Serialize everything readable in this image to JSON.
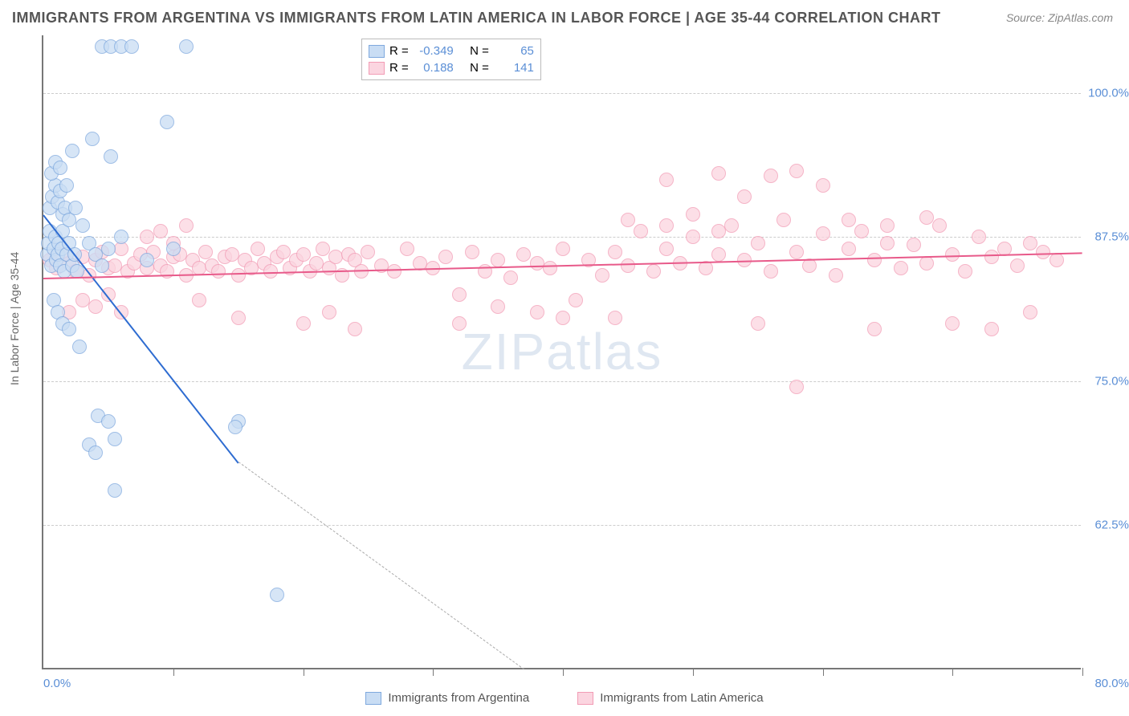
{
  "title": "IMMIGRANTS FROM ARGENTINA VS IMMIGRANTS FROM LATIN AMERICA IN LABOR FORCE | AGE 35-44 CORRELATION CHART",
  "source": "Source: ZipAtlas.com",
  "ylabel": "In Labor Force | Age 35-44",
  "watermark": "ZIPatlas",
  "chart": {
    "type": "scatter",
    "xlim": [
      0,
      80
    ],
    "ylim": [
      50,
      105
    ],
    "xtick_step": 10,
    "xtick_labels": {
      "0": "0.0%",
      "80": "80.0%"
    },
    "ytick_vals": [
      62.5,
      75.0,
      87.5,
      100.0
    ],
    "ytick_labels": [
      "62.5%",
      "75.0%",
      "87.5%",
      "100.0%"
    ],
    "background_color": "#ffffff",
    "grid_color": "#cccccc",
    "axis_color": "#777777",
    "marker_radius": 9,
    "marker_stroke": 1.5,
    "series": [
      {
        "name": "Immigrants from Argentina",
        "fill": "#c9ddf4",
        "stroke": "#7fa9de",
        "line_color": "#2e6cd1",
        "r": "-0.349",
        "n": "65",
        "trend": {
          "x1": 0,
          "y1": 89.5,
          "x2": 15,
          "y2": 68.0,
          "dash_x2": 37,
          "dash_y2": 50
        },
        "points": [
          [
            0.3,
            86
          ],
          [
            0.4,
            87
          ],
          [
            0.5,
            88
          ],
          [
            0.6,
            85
          ],
          [
            0.8,
            86.5
          ],
          [
            0.9,
            87.5
          ],
          [
            1.0,
            85.5
          ],
          [
            1.1,
            86
          ],
          [
            1.2,
            87
          ],
          [
            1.3,
            85
          ],
          [
            1.4,
            86.5
          ],
          [
            1.5,
            88
          ],
          [
            1.6,
            84.5
          ],
          [
            1.8,
            86
          ],
          [
            2.0,
            87
          ],
          [
            2.2,
            85
          ],
          [
            2.4,
            86
          ],
          [
            2.6,
            84.5
          ],
          [
            0.5,
            90
          ],
          [
            0.7,
            91
          ],
          [
            0.9,
            92
          ],
          [
            1.1,
            90.5
          ],
          [
            1.3,
            91.5
          ],
          [
            1.5,
            89.5
          ],
          [
            1.7,
            90
          ],
          [
            2.0,
            89
          ],
          [
            2.5,
            90
          ],
          [
            3.0,
            88.5
          ],
          [
            3.5,
            87
          ],
          [
            4.0,
            86
          ],
          [
            4.5,
            85
          ],
          [
            0.6,
            93
          ],
          [
            0.9,
            94
          ],
          [
            1.3,
            93.5
          ],
          [
            1.8,
            92
          ],
          [
            2.2,
            95
          ],
          [
            3.8,
            96
          ],
          [
            5.2,
            94.5
          ],
          [
            0.8,
            82
          ],
          [
            1.1,
            81
          ],
          [
            1.5,
            80
          ],
          [
            2.0,
            79.5
          ],
          [
            2.8,
            78
          ],
          [
            4.5,
            104
          ],
          [
            5.2,
            104
          ],
          [
            6.0,
            104
          ],
          [
            6.8,
            104
          ],
          [
            11.0,
            104
          ],
          [
            9.5,
            97.5
          ],
          [
            4.2,
            72
          ],
          [
            5.0,
            71.5
          ],
          [
            5.5,
            70
          ],
          [
            15.0,
            71.5
          ],
          [
            14.8,
            71.0
          ],
          [
            3.5,
            69.5
          ],
          [
            4.0,
            68.8
          ],
          [
            5.5,
            65.5
          ],
          [
            5.0,
            86.5
          ],
          [
            6.0,
            87.5
          ],
          [
            8.0,
            85.5
          ],
          [
            10.0,
            86.5
          ],
          [
            18.0,
            56.5
          ]
        ]
      },
      {
        "name": "Immigrants from Latin America",
        "fill": "#fbd5e0",
        "stroke": "#f29cb5",
        "line_color": "#e85a8a",
        "r": "0.188",
        "n": "141",
        "trend": {
          "x1": 0,
          "y1": 84.0,
          "x2": 80,
          "y2": 86.2
        },
        "points": [
          [
            0.5,
            85.5
          ],
          [
            1,
            84.8
          ],
          [
            1.5,
            86
          ],
          [
            2,
            85.2
          ],
          [
            2.5,
            84.5
          ],
          [
            3,
            85.8
          ],
          [
            3.5,
            84.2
          ],
          [
            4,
            85.5
          ],
          [
            4.5,
            86.2
          ],
          [
            5,
            84.8
          ],
          [
            5.5,
            85
          ],
          [
            6,
            86.5
          ],
          [
            6.5,
            84.5
          ],
          [
            7,
            85.2
          ],
          [
            7.5,
            86
          ],
          [
            8,
            84.8
          ],
          [
            8.5,
            86.2
          ],
          [
            9,
            85
          ],
          [
            9.5,
            84.5
          ],
          [
            10,
            85.8
          ],
          [
            10.5,
            86
          ],
          [
            11,
            84.2
          ],
          [
            11.5,
            85.5
          ],
          [
            12,
            84.8
          ],
          [
            12.5,
            86.2
          ],
          [
            13,
            85
          ],
          [
            13.5,
            84.5
          ],
          [
            14,
            85.8
          ],
          [
            14.5,
            86
          ],
          [
            15,
            84.2
          ],
          [
            15.5,
            85.5
          ],
          [
            16,
            84.8
          ],
          [
            16.5,
            86.5
          ],
          [
            17,
            85.2
          ],
          [
            17.5,
            84.5
          ],
          [
            18,
            85.8
          ],
          [
            18.5,
            86.2
          ],
          [
            19,
            84.8
          ],
          [
            19.5,
            85.5
          ],
          [
            20,
            86
          ],
          [
            20.5,
            84.5
          ],
          [
            21,
            85.2
          ],
          [
            21.5,
            86.5
          ],
          [
            22,
            84.8
          ],
          [
            22.5,
            85.8
          ],
          [
            23,
            84.2
          ],
          [
            23.5,
            86
          ],
          [
            24,
            85.5
          ],
          [
            24.5,
            84.5
          ],
          [
            25,
            86.2
          ],
          [
            26,
            85
          ],
          [
            27,
            84.5
          ],
          [
            28,
            86.5
          ],
          [
            29,
            85.2
          ],
          [
            30,
            84.8
          ],
          [
            31,
            85.8
          ],
          [
            32,
            82.5
          ],
          [
            33,
            86.2
          ],
          [
            34,
            84.5
          ],
          [
            35,
            85.5
          ],
          [
            36,
            84
          ],
          [
            37,
            86
          ],
          [
            38,
            85.2
          ],
          [
            39,
            84.8
          ],
          [
            40,
            86.5
          ],
          [
            41,
            82
          ],
          [
            42,
            85.5
          ],
          [
            43,
            84.2
          ],
          [
            44,
            86.2
          ],
          [
            45,
            85
          ],
          [
            46,
            88
          ],
          [
            47,
            84.5
          ],
          [
            48,
            86.5
          ],
          [
            49,
            85.2
          ],
          [
            50,
            87.5
          ],
          [
            51,
            84.8
          ],
          [
            52,
            86
          ],
          [
            53,
            88.5
          ],
          [
            54,
            85.5
          ],
          [
            55,
            87
          ],
          [
            56,
            84.5
          ],
          [
            57,
            89
          ],
          [
            58,
            86.2
          ],
          [
            59,
            85
          ],
          [
            60,
            87.8
          ],
          [
            61,
            84.2
          ],
          [
            62,
            86.5
          ],
          [
            63,
            88
          ],
          [
            64,
            85.5
          ],
          [
            65,
            87
          ],
          [
            66,
            84.8
          ],
          [
            67,
            86.8
          ],
          [
            68,
            85.2
          ],
          [
            69,
            88.5
          ],
          [
            70,
            86
          ],
          [
            71,
            84.5
          ],
          [
            72,
            87.5
          ],
          [
            73,
            85.8
          ],
          [
            74,
            86.5
          ],
          [
            75,
            85
          ],
          [
            76,
            87
          ],
          [
            77,
            86.2
          ],
          [
            78,
            85.5
          ],
          [
            48,
            92.5
          ],
          [
            52,
            93
          ],
          [
            54,
            91
          ],
          [
            56,
            92.8
          ],
          [
            58,
            93.2
          ],
          [
            60,
            92
          ],
          [
            38,
            81
          ],
          [
            44,
            80.5
          ],
          [
            55,
            80
          ],
          [
            58,
            74.5
          ],
          [
            64,
            79.5
          ],
          [
            70,
            80
          ],
          [
            73,
            79.5
          ],
          [
            76,
            81
          ],
          [
            32,
            80
          ],
          [
            35,
            81.5
          ],
          [
            40,
            80.5
          ],
          [
            20,
            80
          ],
          [
            22,
            81
          ],
          [
            24,
            79.5
          ],
          [
            12,
            82
          ],
          [
            15,
            80.5
          ],
          [
            45,
            89
          ],
          [
            48,
            88.5
          ],
          [
            50,
            89.5
          ],
          [
            52,
            88
          ],
          [
            62,
            89
          ],
          [
            65,
            88.5
          ],
          [
            68,
            89.2
          ],
          [
            2,
            81
          ],
          [
            3,
            82
          ],
          [
            4,
            81.5
          ],
          [
            5,
            82.5
          ],
          [
            6,
            81
          ],
          [
            8,
            87.5
          ],
          [
            9,
            88
          ],
          [
            10,
            87
          ],
          [
            11,
            88.5
          ]
        ]
      }
    ]
  },
  "legend_top": {
    "r_label": "R =",
    "n_label": "N ="
  }
}
